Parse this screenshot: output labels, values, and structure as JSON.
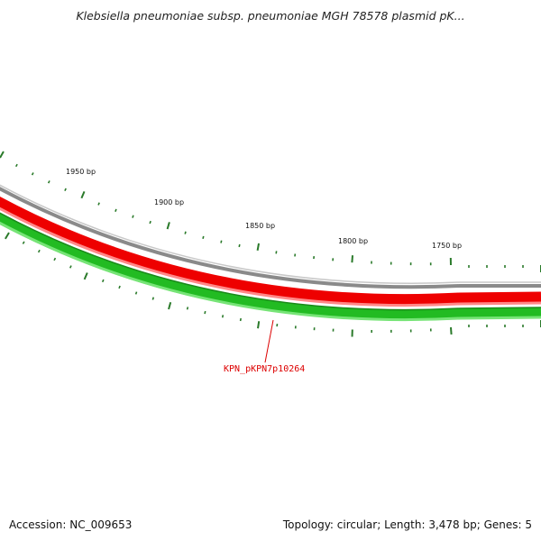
{
  "title": "Klebsiella pneumoniae subsp. pneumoniae MGH 78578 plasmid pK...",
  "footer": {
    "accession": "Accession: NC_009653",
    "summary": "Topology: circular; Length: 3,478 bp; Genes: 5"
  },
  "map": {
    "tick_labels": [
      {
        "id": "tick-1950",
        "text": "1950 bp"
      },
      {
        "id": "tick-1900",
        "text": "1900 bp"
      },
      {
        "id": "tick-1850",
        "text": "1850 bp"
      },
      {
        "id": "tick-1800",
        "text": "1800 bp"
      },
      {
        "id": "tick-1750",
        "text": "1750 bp"
      }
    ],
    "gene_label": "KPN_pKPN7p10264",
    "colors": {
      "backbone": "#8a8a8a",
      "gene_red": "#ee0000",
      "gene_red_light": "#ff7777",
      "gene_green": "#22bb22",
      "gene_green_light": "#66e066",
      "tick_green": "#2a7a2a",
      "label_red": "#dd0000"
    }
  }
}
